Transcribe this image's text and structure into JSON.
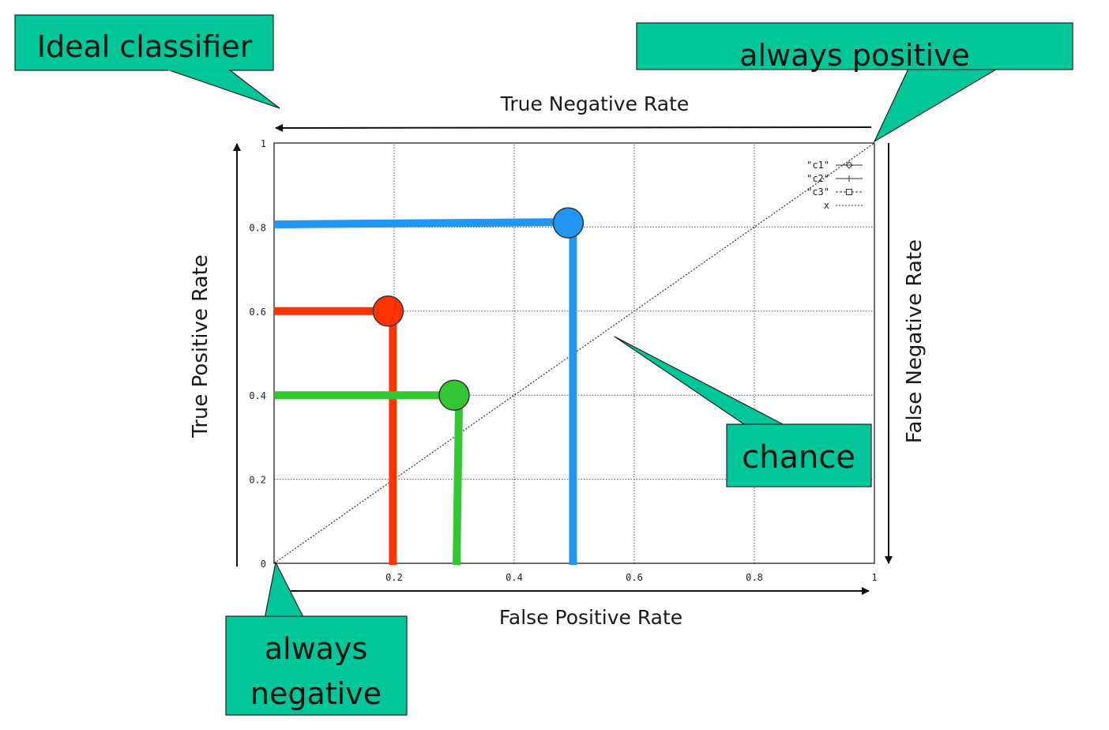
{
  "colors": {
    "callout": "#00c79a",
    "blue": "#2196f3",
    "red": "#ff3300",
    "green": "#33c633",
    "grid": "#555555",
    "axis": "#111111"
  },
  "chart_data": {
    "type": "scatter",
    "xlabel": "False Positive Rate",
    "ylabel": "True Positive Rate",
    "top_label": "True Negative Rate",
    "right_label": "False  Negative Rate",
    "xlim": [
      0,
      1
    ],
    "ylim": [
      0,
      1
    ],
    "grid": true,
    "x_ticks": [
      "0.2",
      "0.4",
      "0.6",
      "0.8",
      "1"
    ],
    "y_ticks": [
      "0",
      "0.2",
      "0.4",
      "0.6",
      "0.8",
      "1"
    ],
    "legend_placement": "top-right",
    "legend": [
      "\"c1\"",
      "\"c2\"",
      "\"c3\"",
      "x"
    ],
    "points": [
      {
        "x": 0.49,
        "y": 0.81,
        "color": "#2196f3"
      },
      {
        "x": 0.19,
        "y": 0.6,
        "color": "#ff3300"
      },
      {
        "x": 0.3,
        "y": 0.4,
        "color": "#33c633"
      }
    ],
    "diagonal": {
      "from": [
        0,
        0
      ],
      "to": [
        1,
        1
      ]
    },
    "callouts": [
      {
        "name": "callout-ideal-classifier",
        "lines": [
          "Ideal classifier"
        ]
      },
      {
        "name": "callout-always-positive",
        "lines": [
          "always positive"
        ]
      },
      {
        "name": "callout-chance",
        "lines": [
          "chance"
        ]
      },
      {
        "name": "callout-always-negative",
        "lines": [
          "always",
          "negative"
        ]
      }
    ]
  }
}
